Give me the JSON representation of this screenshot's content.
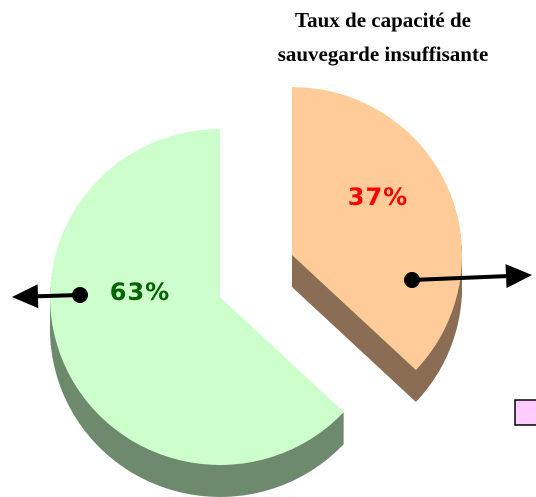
{
  "chart_data": {
    "type": "pie",
    "categories": [
      null,
      "Taux de capacité de sauvegarde insuffisante"
    ],
    "values": [
      63,
      37
    ],
    "value_labels": [
      "63%",
      "37%"
    ],
    "colors": [
      "#ccffcc",
      "#ffcc99"
    ],
    "side_colors": [
      "#6e8a6e",
      "#8a6e55"
    ],
    "label_colors": [
      "#006400",
      "#ff0000"
    ]
  }
}
